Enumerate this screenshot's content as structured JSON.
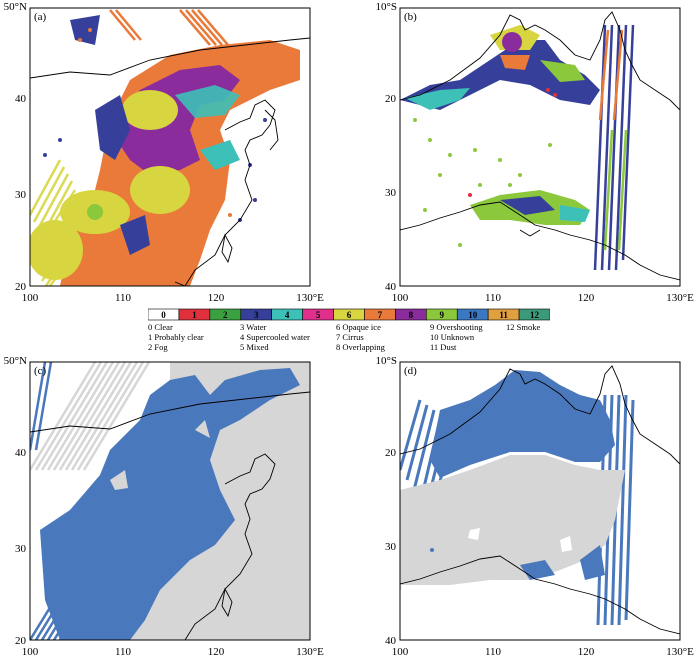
{
  "panels": [
    {
      "id": "a",
      "label": "(a)",
      "corner_lat": "50°N",
      "yticks": [
        "40",
        "30",
        "20"
      ],
      "xticks": [
        "100",
        "110",
        "120",
        "130°E"
      ]
    },
    {
      "id": "b",
      "label": "(b)",
      "corner_lat": "10°S",
      "yticks": [
        "20",
        "30",
        "40"
      ],
      "xticks": [
        "100",
        "110",
        "120",
        "130°E"
      ]
    },
    {
      "id": "c",
      "label": "(c)",
      "corner_lat": "50°N",
      "yticks": [
        "40",
        "30",
        "20"
      ],
      "xticks": [
        "100",
        "110",
        "120",
        "130°E"
      ]
    },
    {
      "id": "d",
      "label": "(d)",
      "corner_lat": "10°S",
      "yticks": [
        "20",
        "30",
        "40"
      ],
      "xticks": [
        "100",
        "110",
        "120",
        "130°E"
      ]
    }
  ],
  "legend": {
    "swatches": [
      {
        "code": "0",
        "color": "#ffffff"
      },
      {
        "code": "1",
        "color": "#e0303c"
      },
      {
        "code": "2",
        "color": "#3aa040"
      },
      {
        "code": "3",
        "color": "#36409a"
      },
      {
        "code": "4",
        "color": "#3cc0b8"
      },
      {
        "code": "5",
        "color": "#e0308c"
      },
      {
        "code": "6",
        "color": "#d8d640"
      },
      {
        "code": "7",
        "color": "#ea7a3a"
      },
      {
        "code": "8",
        "color": "#8a2c9c"
      },
      {
        "code": "9",
        "color": "#8cc83c"
      },
      {
        "code": "10",
        "color": "#3b78c4"
      },
      {
        "code": "11",
        "color": "#e0a040"
      },
      {
        "code": "12",
        "color": "#3a9a7a"
      }
    ],
    "columns": [
      [
        "0 Clear",
        "1 Probably clear",
        "2 Fog"
      ],
      [
        "3 Water",
        "4 Supercooled water",
        "5 Mixed"
      ],
      [
        "6 Opaque ice",
        "7 Cirrus",
        "8 Overlapping"
      ],
      [
        "9 Overshooting",
        "10 Unknown",
        "11 Dust"
      ],
      [
        "12 Smoke"
      ]
    ]
  },
  "colors": {
    "cloud_blue": "#4a78bc",
    "clear_gray": "#d6d6d6",
    "border": "#000000"
  }
}
